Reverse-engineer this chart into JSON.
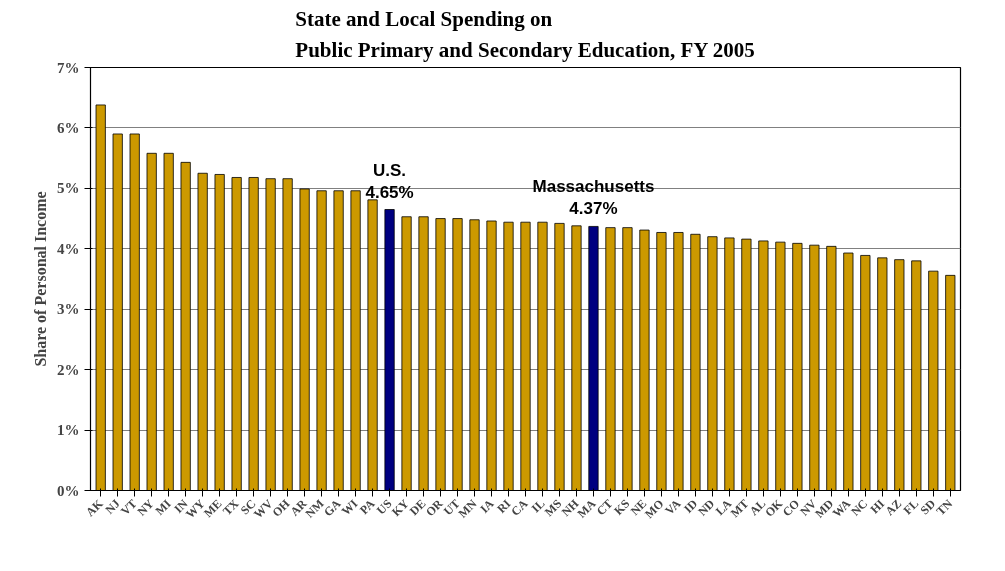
{
  "chart_data": {
    "type": "bar",
    "title": "State and Local Spending on\nPublic Primary and Secondary Education, FY 2005",
    "ylabel": "Share of Personal Income",
    "categories": [
      "AK",
      "NJ",
      "VT",
      "NY",
      "MI",
      "IN",
      "WY",
      "ME",
      "TX",
      "SC",
      "WV",
      "OH",
      "AR",
      "NM",
      "GA",
      "WI",
      "PA",
      "US",
      "KY",
      "DE",
      "OR",
      "UT",
      "MN",
      "IA",
      "RI",
      "CA",
      "IL",
      "MS",
      "NH",
      "MA",
      "CT",
      "KS",
      "NE",
      "MO",
      "VA",
      "ID",
      "ND",
      "LA",
      "MT",
      "AL",
      "OK",
      "CO",
      "NV",
      "MD",
      "WA",
      "NC",
      "HI",
      "AZ",
      "FL",
      "SD",
      "TN"
    ],
    "values": [
      6.38,
      5.9,
      5.9,
      5.58,
      5.58,
      5.43,
      5.25,
      5.23,
      5.18,
      5.18,
      5.16,
      5.16,
      4.99,
      4.96,
      4.96,
      4.96,
      4.81,
      4.65,
      4.53,
      4.53,
      4.5,
      4.5,
      4.48,
      4.46,
      4.44,
      4.44,
      4.44,
      4.42,
      4.38,
      4.37,
      4.35,
      4.35,
      4.31,
      4.27,
      4.27,
      4.24,
      4.2,
      4.18,
      4.16,
      4.13,
      4.11,
      4.09,
      4.06,
      4.04,
      3.93,
      3.89,
      3.85,
      3.82,
      3.8,
      3.63,
      3.56
    ],
    "colors": [
      "#cc9900",
      "#cc9900",
      "#cc9900",
      "#cc9900",
      "#cc9900",
      "#cc9900",
      "#cc9900",
      "#cc9900",
      "#cc9900",
      "#cc9900",
      "#cc9900",
      "#cc9900",
      "#cc9900",
      "#cc9900",
      "#cc9900",
      "#cc9900",
      "#cc9900",
      "#000080",
      "#cc9900",
      "#cc9900",
      "#cc9900",
      "#cc9900",
      "#cc9900",
      "#cc9900",
      "#cc9900",
      "#cc9900",
      "#cc9900",
      "#cc9900",
      "#cc9900",
      "#000080",
      "#cc9900",
      "#cc9900",
      "#cc9900",
      "#cc9900",
      "#cc9900",
      "#cc9900",
      "#cc9900",
      "#cc9900",
      "#cc9900",
      "#cc9900",
      "#cc9900",
      "#cc9900",
      "#cc9900",
      "#cc9900",
      "#cc9900",
      "#cc9900",
      "#cc9900",
      "#cc9900",
      "#cc9900",
      "#cc9900",
      "#cc9900"
    ],
    "ylim": [
      0,
      7
    ],
    "yticks": [
      {
        "value": 0,
        "label": "0%"
      },
      {
        "value": 1,
        "label": "1%"
      },
      {
        "value": 2,
        "label": "2%"
      },
      {
        "value": 3,
        "label": "3%"
      },
      {
        "value": 4,
        "label": "4%"
      },
      {
        "value": 5,
        "label": "5%"
      },
      {
        "value": 6,
        "label": "6%"
      },
      {
        "value": 7,
        "label": "7%"
      }
    ],
    "grid": "y",
    "annotations": [
      {
        "text": "U.S.\n4.65%",
        "x": "US",
        "y": 4.65
      },
      {
        "text": "Massachusetts\n4.37%",
        "x": "MA",
        "y": 4.37
      }
    ]
  }
}
